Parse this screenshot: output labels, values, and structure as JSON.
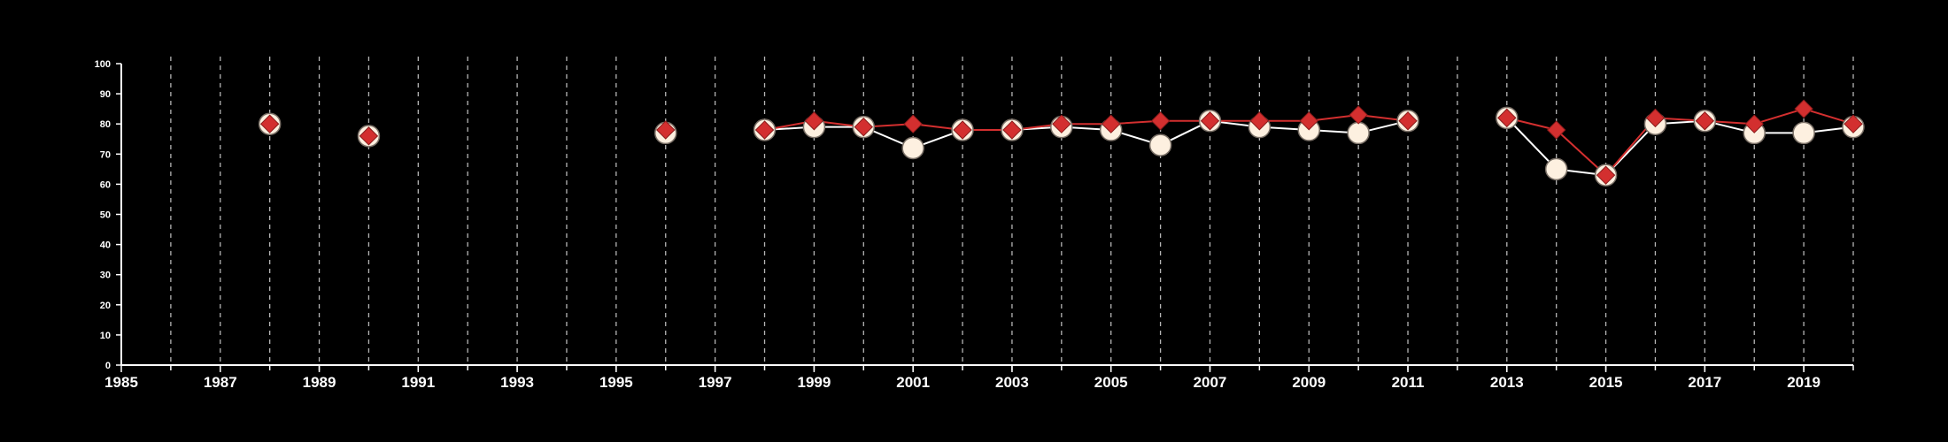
{
  "chart_data": {
    "type": "line",
    "title": "",
    "xlabel": "",
    "ylabel": "",
    "xlim": [
      1985,
      2020
    ],
    "ylim": [
      0,
      100
    ],
    "x_ticks": [
      1985,
      1987,
      1989,
      1991,
      1993,
      1995,
      1997,
      1999,
      2001,
      2003,
      2005,
      2007,
      2009,
      2011,
      2013,
      2015,
      2017,
      2019
    ],
    "y_ticks": [
      0,
      10,
      20,
      30,
      40,
      50,
      60,
      70,
      80,
      90,
      100
    ],
    "vertical_dashed_grid_years": [
      1986,
      1987,
      1988,
      1989,
      1990,
      1991,
      1992,
      1993,
      1994,
      1995,
      1996,
      1997,
      1998,
      1999,
      2000,
      2001,
      2002,
      2003,
      2004,
      2005,
      2006,
      2007,
      2008,
      2009,
      2010,
      2011,
      2012,
      2013,
      2014,
      2015,
      2016,
      2017,
      2018,
      2019,
      2020
    ],
    "legend": false,
    "background_color": "#000000",
    "axis_color": "#ffffff",
    "series": [
      {
        "marker": "circle",
        "color": "#fdf0e0",
        "line_color": "#ffffff",
        "points": [
          {
            "x": 1988,
            "y": 80
          },
          {
            "x": 1990,
            "y": 76
          },
          {
            "x": 1996,
            "y": 77
          },
          {
            "x": 1998,
            "y": 78
          },
          {
            "x": 1999,
            "y": 79
          },
          {
            "x": 2000,
            "y": 79
          },
          {
            "x": 2001,
            "y": 72
          },
          {
            "x": 2002,
            "y": 78
          },
          {
            "x": 2003,
            "y": 78
          },
          {
            "x": 2004,
            "y": 79
          },
          {
            "x": 2005,
            "y": 78
          },
          {
            "x": 2006,
            "y": 73
          },
          {
            "x": 2007,
            "y": 81
          },
          {
            "x": 2008,
            "y": 79
          },
          {
            "x": 2009,
            "y": 78
          },
          {
            "x": 2010,
            "y": 77
          },
          {
            "x": 2011,
            "y": 81
          },
          {
            "x": 2013,
            "y": 82
          },
          {
            "x": 2014,
            "y": 65
          },
          {
            "x": 2015,
            "y": 63
          },
          {
            "x": 2016,
            "y": 80
          },
          {
            "x": 2017,
            "y": 81
          },
          {
            "x": 2018,
            "y": 77
          },
          {
            "x": 2019,
            "y": 77
          },
          {
            "x": 2020,
            "y": 79
          }
        ]
      },
      {
        "marker": "diamond",
        "color": "#d32f2f",
        "line_color": "#d32f2f",
        "points": [
          {
            "x": 1988,
            "y": 80
          },
          {
            "x": 1990,
            "y": 76
          },
          {
            "x": 1996,
            "y": 78
          },
          {
            "x": 1998,
            "y": 78
          },
          {
            "x": 1999,
            "y": 81
          },
          {
            "x": 2000,
            "y": 79
          },
          {
            "x": 2001,
            "y": 80
          },
          {
            "x": 2002,
            "y": 78
          },
          {
            "x": 2003,
            "y": 78
          },
          {
            "x": 2004,
            "y": 80
          },
          {
            "x": 2005,
            "y": 80
          },
          {
            "x": 2006,
            "y": 81
          },
          {
            "x": 2007,
            "y": 81
          },
          {
            "x": 2008,
            "y": 81
          },
          {
            "x": 2009,
            "y": 81
          },
          {
            "x": 2010,
            "y": 83
          },
          {
            "x": 2011,
            "y": 81
          },
          {
            "x": 2013,
            "y": 82
          },
          {
            "x": 2014,
            "y": 78
          },
          {
            "x": 2015,
            "y": 63
          },
          {
            "x": 2016,
            "y": 82
          },
          {
            "x": 2017,
            "y": 81
          },
          {
            "x": 2018,
            "y": 80
          },
          {
            "x": 2019,
            "y": 85
          },
          {
            "x": 2020,
            "y": 80
          }
        ]
      }
    ]
  }
}
